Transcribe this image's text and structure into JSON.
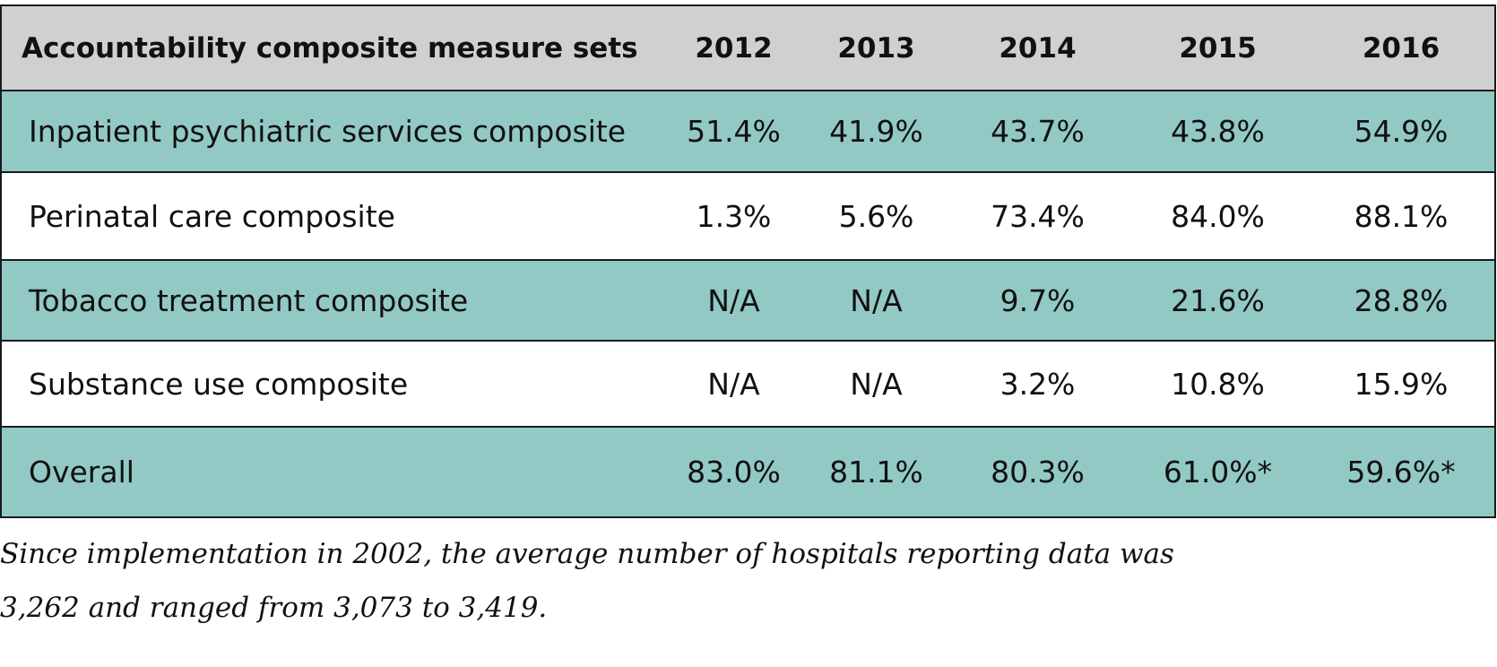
{
  "table": {
    "headers": [
      "Accountability composite measure sets",
      "2012",
      "2013",
      "2014",
      "2015",
      "2016"
    ],
    "rows": [
      {
        "label": "Inpatient psychiatric services composite",
        "values": [
          "51.4%",
          "41.9%",
          "43.7%",
          "43.8%",
          "54.9%"
        ]
      },
      {
        "label": "Perinatal care composite",
        "values": [
          "1.3%",
          "5.6%",
          "73.4%",
          "84.0%",
          "88.1%"
        ]
      },
      {
        "label": "Tobacco treatment composite",
        "values": [
          "N/A",
          "N/A",
          "9.7%",
          "21.6%",
          "28.8%"
        ]
      },
      {
        "label": "Substance use composite",
        "values": [
          "N/A",
          "N/A",
          "3.2%",
          "10.8%",
          "15.9%"
        ]
      },
      {
        "label": "Overall",
        "values": [
          "83.0%",
          "81.1%",
          "80.3%",
          "61.0%*",
          "59.6%*"
        ]
      }
    ]
  },
  "footnote": {
    "line1": "Since implementation in 2002, the average number of hospitals reporting data was",
    "line2": "3,262 and ranged from 3,073 to 3,419."
  },
  "colors": {
    "header_bg": "#cfd0d2",
    "teal_row_bg": "#93c9c4",
    "white_row_bg": "#ffffff",
    "border": "#1a1a1a"
  }
}
